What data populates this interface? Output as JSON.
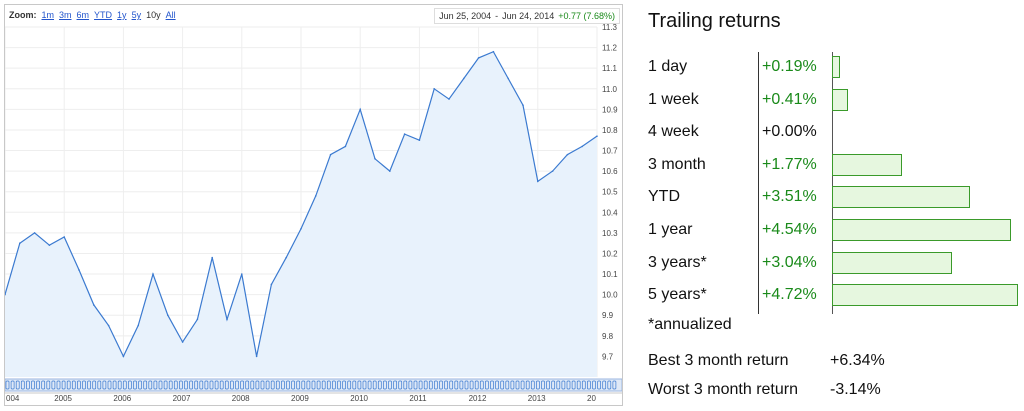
{
  "toolbar": {
    "zoom_label": "Zoom:",
    "zoom_options": [
      "1m",
      "3m",
      "6m",
      "YTD",
      "1y",
      "5y",
      "10y",
      "All"
    ],
    "zoom_selected": "10y",
    "range_start": "Jun 25, 2004",
    "range_sep": "-",
    "range_end": "Jun 24, 2014",
    "range_change": "+0.77 (7.68%)"
  },
  "colors": {
    "line": "#3b7ad0",
    "fill": "#e8f2fc",
    "positive": "#1a8a1a",
    "bar_fill": "#e6f7df",
    "bar_border": "#3a9a2a"
  },
  "chart_data": {
    "type": "area",
    "x": [
      "2004-06",
      "2004-09",
      "2004-12",
      "2005-03",
      "2005-06",
      "2005-09",
      "2005-12",
      "2006-03",
      "2006-06",
      "2006-09",
      "2006-12",
      "2007-03",
      "2007-06",
      "2007-09",
      "2007-12",
      "2008-03",
      "2008-06",
      "2008-09",
      "2008-12",
      "2009-03",
      "2009-06",
      "2009-09",
      "2009-12",
      "2010-03",
      "2010-06",
      "2010-09",
      "2010-12",
      "2011-03",
      "2011-06",
      "2011-09",
      "2011-12",
      "2012-03",
      "2012-06",
      "2012-09",
      "2012-12",
      "2013-03",
      "2013-06",
      "2013-09",
      "2013-12",
      "2014-03",
      "2014-06"
    ],
    "values": [
      10.0,
      10.25,
      10.3,
      10.24,
      10.28,
      10.12,
      9.95,
      9.85,
      9.7,
      9.85,
      10.1,
      9.9,
      9.77,
      9.88,
      10.18,
      9.88,
      10.1,
      9.7,
      10.05,
      10.18,
      10.32,
      10.48,
      10.68,
      10.72,
      10.9,
      10.66,
      10.6,
      10.78,
      10.75,
      11.0,
      10.95,
      11.05,
      11.15,
      11.18,
      11.05,
      10.92,
      10.55,
      10.6,
      10.68,
      10.72,
      10.77
    ],
    "ylim": [
      9.6,
      11.3
    ],
    "y_ticks": [
      "9.7",
      "9.8",
      "9.9",
      "10.0",
      "10.1",
      "10.2",
      "10.3",
      "10.4",
      "10.5",
      "10.6",
      "10.7",
      "10.8",
      "10.9",
      "11.0",
      "11.1",
      "11.2",
      "11.3"
    ],
    "x_ticks": [
      "004",
      "2005",
      "2006",
      "2007",
      "2008",
      "2009",
      "2010",
      "2011",
      "2012",
      "2013",
      "20"
    ],
    "grid": true
  },
  "returns": {
    "title": "Trailing returns",
    "rows": [
      {
        "label": "1 day",
        "value": "+0.19%",
        "pct": 0.19
      },
      {
        "label": "1 week",
        "value": "+0.41%",
        "pct": 0.41
      },
      {
        "label": "4 week",
        "value": "+0.00%",
        "pct": 0.0
      },
      {
        "label": "3 month",
        "value": "+1.77%",
        "pct": 1.77
      },
      {
        "label": "YTD",
        "value": "+3.51%",
        "pct": 3.51
      },
      {
        "label": "1 year",
        "value": "+4.54%",
        "pct": 4.54
      },
      {
        "label": "3 years*",
        "value": "+3.04%",
        "pct": 3.04
      },
      {
        "label": "5 years*",
        "value": "+4.72%",
        "pct": 4.72
      }
    ],
    "note": "*annualized",
    "best_label": "Best 3 month return",
    "best_value": "+6.34%",
    "worst_label": "Worst 3 month return",
    "worst_value": "-3.14%"
  }
}
